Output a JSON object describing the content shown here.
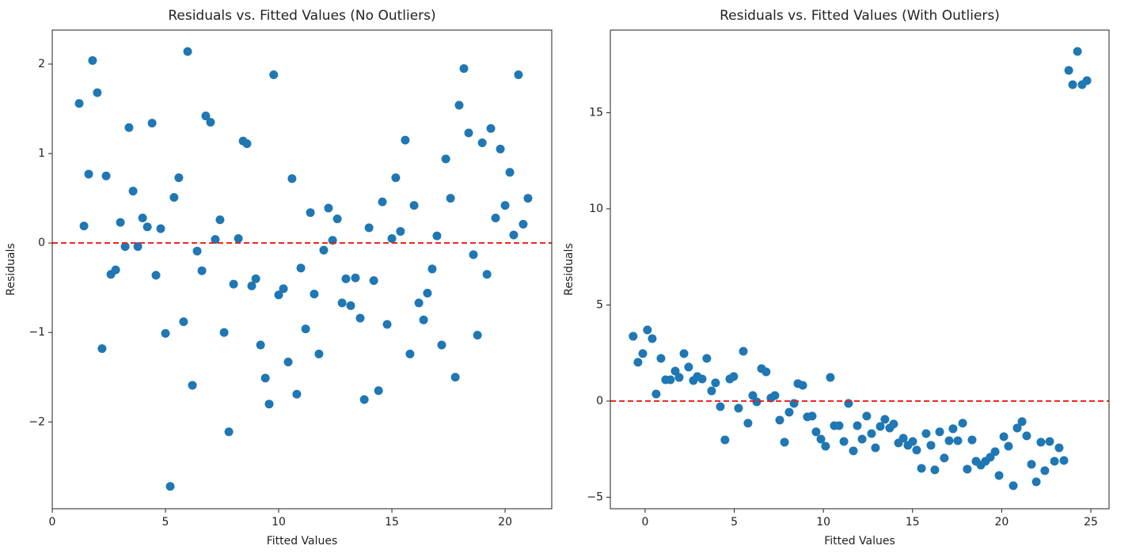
{
  "chart_data": [
    {
      "type": "scatter",
      "title": "Residuals vs. Fitted Values (No Outliers)",
      "xlabel": "Fitted Values",
      "ylabel": "Residuals",
      "color": "#1f77b4",
      "hline": 0,
      "hline_color": "#e8211a",
      "xlim": [
        0,
        22.06
      ],
      "ylim": [
        -2.97,
        2.38
      ],
      "xticks": [
        0,
        5,
        10,
        15,
        20
      ],
      "yticks": [
        {
          "value": -2,
          "label": "−2"
        },
        {
          "value": -1,
          "label": "−1"
        },
        0,
        1,
        2
      ],
      "x": [
        1.19,
        1.4,
        1.61,
        1.78,
        1.99,
        2.2,
        2.38,
        2.59,
        2.8,
        3.01,
        3.22,
        3.39,
        3.57,
        3.78,
        3.99,
        4.2,
        4.41,
        4.58,
        4.79,
        5.0,
        5.21,
        5.38,
        5.59,
        5.8,
        5.98,
        6.19,
        6.4,
        6.61,
        6.78,
        6.99,
        7.2,
        7.41,
        7.59,
        7.8,
        8.01,
        8.22,
        8.43,
        8.6,
        8.81,
        8.99,
        9.2,
        9.41,
        9.58,
        9.78,
        10.0,
        10.21,
        10.42,
        10.59,
        10.8,
        10.98,
        11.19,
        11.4,
        11.57,
        11.78,
        11.99,
        12.2,
        12.38,
        12.59,
        12.8,
        12.97,
        13.18,
        13.39,
        13.6,
        13.78,
        13.99,
        14.2,
        14.41,
        14.58,
        14.79,
        15.0,
        15.17,
        15.38,
        15.59,
        15.8,
        15.98,
        16.19,
        16.4,
        16.57,
        16.78,
        16.99,
        17.2,
        17.38,
        17.59,
        17.8,
        17.97,
        18.18,
        18.39,
        18.6,
        18.78,
        18.99,
        19.2,
        19.37,
        19.58,
        19.79,
        20.0,
        20.21,
        20.38,
        20.59,
        20.8,
        21.01
      ],
      "y": [
        1.56,
        0.19,
        0.77,
        2.04,
        1.68,
        -1.18,
        0.75,
        -0.35,
        -0.3,
        0.23,
        -0.04,
        1.29,
        0.58,
        -0.04,
        0.28,
        0.18,
        1.34,
        -0.36,
        0.16,
        -1.01,
        -2.72,
        0.51,
        0.73,
        -0.88,
        2.14,
        -1.59,
        -0.09,
        -0.31,
        1.42,
        1.35,
        0.04,
        0.26,
        -1.0,
        -2.11,
        -0.46,
        0.05,
        1.14,
        1.11,
        -0.48,
        -0.4,
        -1.14,
        -1.51,
        -1.8,
        1.88,
        -0.58,
        -0.51,
        -1.33,
        0.72,
        -1.69,
        -0.28,
        -0.96,
        0.34,
        -0.57,
        -1.24,
        -0.08,
        0.39,
        0.03,
        0.27,
        -0.67,
        -0.4,
        -0.7,
        -0.39,
        -0.84,
        -1.75,
        0.17,
        -0.42,
        -1.65,
        0.46,
        -0.91,
        0.05,
        0.73,
        0.13,
        1.15,
        -1.24,
        0.42,
        -0.67,
        -0.86,
        -0.56,
        -0.29,
        0.08,
        -1.14,
        0.94,
        0.5,
        -1.5,
        1.54,
        1.95,
        1.23,
        -0.13,
        -1.03,
        1.12,
        -0.35,
        1.28,
        0.28,
        1.05,
        0.42,
        0.79,
        0.09,
        1.88,
        0.21,
        0.5
      ]
    },
    {
      "type": "scatter",
      "title": "Residuals vs. Fitted Values (With Outliers)",
      "xlabel": "Fitted Values",
      "ylabel": "Residuals",
      "color": "#1f77b4",
      "hline": 0,
      "hline_color": "#e8211a",
      "xlim": [
        -1.95,
        26.02
      ],
      "ylim": [
        -5.6,
        19.3
      ],
      "xticks": [
        0,
        5,
        10,
        15,
        20,
        25
      ],
      "yticks": [
        {
          "value": -5,
          "label": "−5"
        },
        0,
        5,
        10,
        15
      ],
      "x": [
        -0.67,
        -0.4,
        -0.13,
        0.13,
        0.4,
        0.62,
        0.89,
        1.15,
        1.42,
        1.69,
        1.91,
        2.18,
        2.44,
        2.71,
        2.93,
        3.2,
        3.46,
        3.73,
        3.95,
        4.22,
        4.48,
        4.75,
        4.97,
        5.24,
        5.51,
        5.77,
        6.04,
        6.26,
        6.53,
        6.79,
        7.06,
        7.28,
        7.55,
        7.82,
        8.08,
        8.35,
        8.57,
        8.84,
        9.1,
        9.37,
        9.59,
        9.86,
        10.12,
        10.39,
        10.61,
        10.88,
        11.15,
        11.41,
        11.68,
        11.9,
        12.17,
        12.43,
        12.7,
        12.92,
        13.19,
        13.45,
        13.72,
        13.94,
        14.21,
        14.48,
        14.74,
        15.01,
        15.23,
        15.5,
        15.76,
        16.03,
        16.25,
        16.52,
        16.78,
        17.05,
        17.27,
        17.54,
        17.81,
        18.07,
        18.34,
        18.56,
        18.83,
        19.09,
        19.36,
        19.63,
        19.85,
        20.12,
        20.38,
        20.65,
        20.87,
        21.14,
        21.4,
        21.67,
        21.94,
        22.2,
        22.42,
        22.69,
        22.96,
        23.22,
        23.49,
        23.76,
        23.98,
        24.25,
        24.51,
        24.78
      ],
      "y": [
        3.37,
        2.02,
        2.47,
        3.7,
        3.25,
        0.37,
        2.22,
        1.11,
        1.11,
        1.56,
        1.23,
        2.47,
        1.77,
        1.07,
        1.28,
        1.15,
        2.22,
        0.53,
        0.95,
        -0.29,
        -2.02,
        1.15,
        1.28,
        -0.37,
        2.59,
        -1.15,
        0.29,
        -0.04,
        1.69,
        1.52,
        0.16,
        0.29,
        -0.99,
        -2.14,
        -0.58,
        -0.12,
        0.91,
        0.82,
        -0.82,
        -0.78,
        -1.6,
        -1.98,
        -2.35,
        1.23,
        -1.28,
        -1.28,
        -2.1,
        -0.12,
        -2.59,
        -1.28,
        -1.98,
        -0.78,
        -1.69,
        -2.43,
        -1.32,
        -0.95,
        -1.4,
        -1.19,
        -2.18,
        -1.93,
        -2.3,
        -2.1,
        -2.55,
        -3.5,
        -1.69,
        -2.3,
        -3.58,
        -1.6,
        -2.96,
        -2.06,
        -1.44,
        -2.06,
        -1.15,
        -3.54,
        -2.02,
        -3.13,
        -3.33,
        -3.13,
        -2.92,
        -2.63,
        -3.87,
        -1.85,
        -2.35,
        -4.4,
        -1.4,
        -1.07,
        -1.81,
        -3.29,
        -4.2,
        -2.14,
        -3.62,
        -2.1,
        -3.13,
        -2.43,
        -3.09,
        17.2,
        16.46,
        18.19,
        16.46,
        16.67
      ]
    }
  ]
}
